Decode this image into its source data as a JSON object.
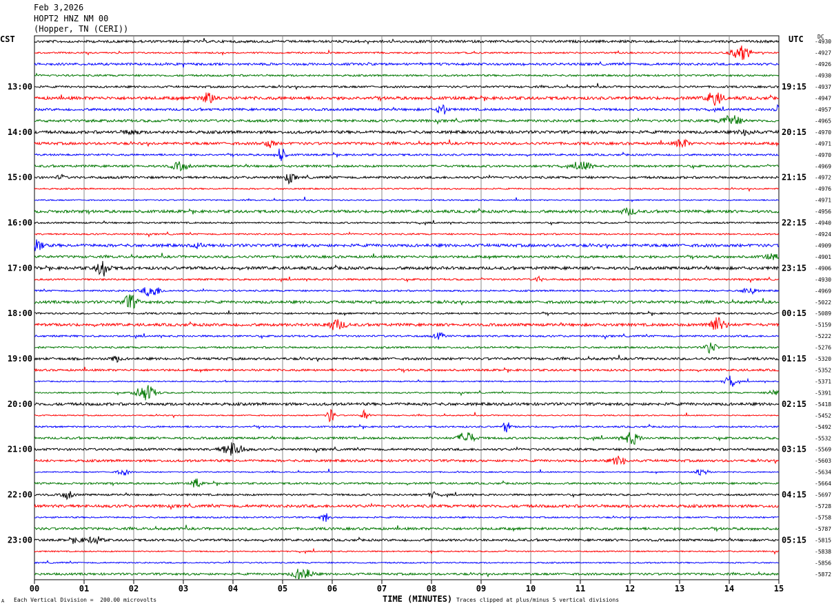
{
  "header": {
    "date": "Feb 3,2026",
    "station": "HOPT2 HNZ NM 00",
    "location": "(Hopper, TN (CERI))"
  },
  "labels": {
    "left_zone": "CST",
    "right_zone": "UTC",
    "dc": "DC"
  },
  "footer": {
    "scale": "Each Vertical Division =  200.00 microvolts",
    "xlabel": "TIME (MINUTES)",
    "clip_note": "Traces clipped at plus/minus 5 vertical divisions",
    "corner_mark": "A"
  },
  "chart_data": {
    "type": "line",
    "title": "HOPT2 HNZ NM 00",
    "xlabel": "TIME (MINUTES)",
    "xlim": [
      0,
      15
    ],
    "x_ticks": [
      "00",
      "01",
      "02",
      "03",
      "04",
      "05",
      "06",
      "07",
      "08",
      "09",
      "10",
      "11",
      "12",
      "13",
      "14",
      "15"
    ],
    "grid": true,
    "trace_colors": [
      "#000000",
      "#ff0000",
      "#0000ff",
      "#007700"
    ],
    "left_time_labels": [
      "13:00",
      "14:00",
      "15:00",
      "16:00",
      "17:00",
      "18:00",
      "19:00",
      "20:00",
      "21:00",
      "22:00",
      "23:00"
    ],
    "right_time_labels": [
      "19:15",
      "20:15",
      "21:15",
      "22:15",
      "23:15",
      "00:15",
      "01:15",
      "02:15",
      "03:15",
      "04:15",
      "05:15"
    ],
    "dc_offsets": [
      -4930,
      -4927,
      -4926,
      -4930,
      -4937,
      -4947,
      -4957,
      -4965,
      -4970,
      -4971,
      -4970,
      -4969,
      -4972,
      -4976,
      -4971,
      -4956,
      -4940,
      -4924,
      -4909,
      -4901,
      -4906,
      -4930,
      -4969,
      -5022,
      -5089,
      -5159,
      -5222,
      -5276,
      -5320,
      -5352,
      -5371,
      -5391,
      -5418,
      -5452,
      -5492,
      -5532,
      -5569,
      -5603,
      -5634,
      -5664,
      -5697,
      -5728,
      -5758,
      -5787,
      -5815,
      -5838,
      -5856,
      -5872
    ]
  }
}
